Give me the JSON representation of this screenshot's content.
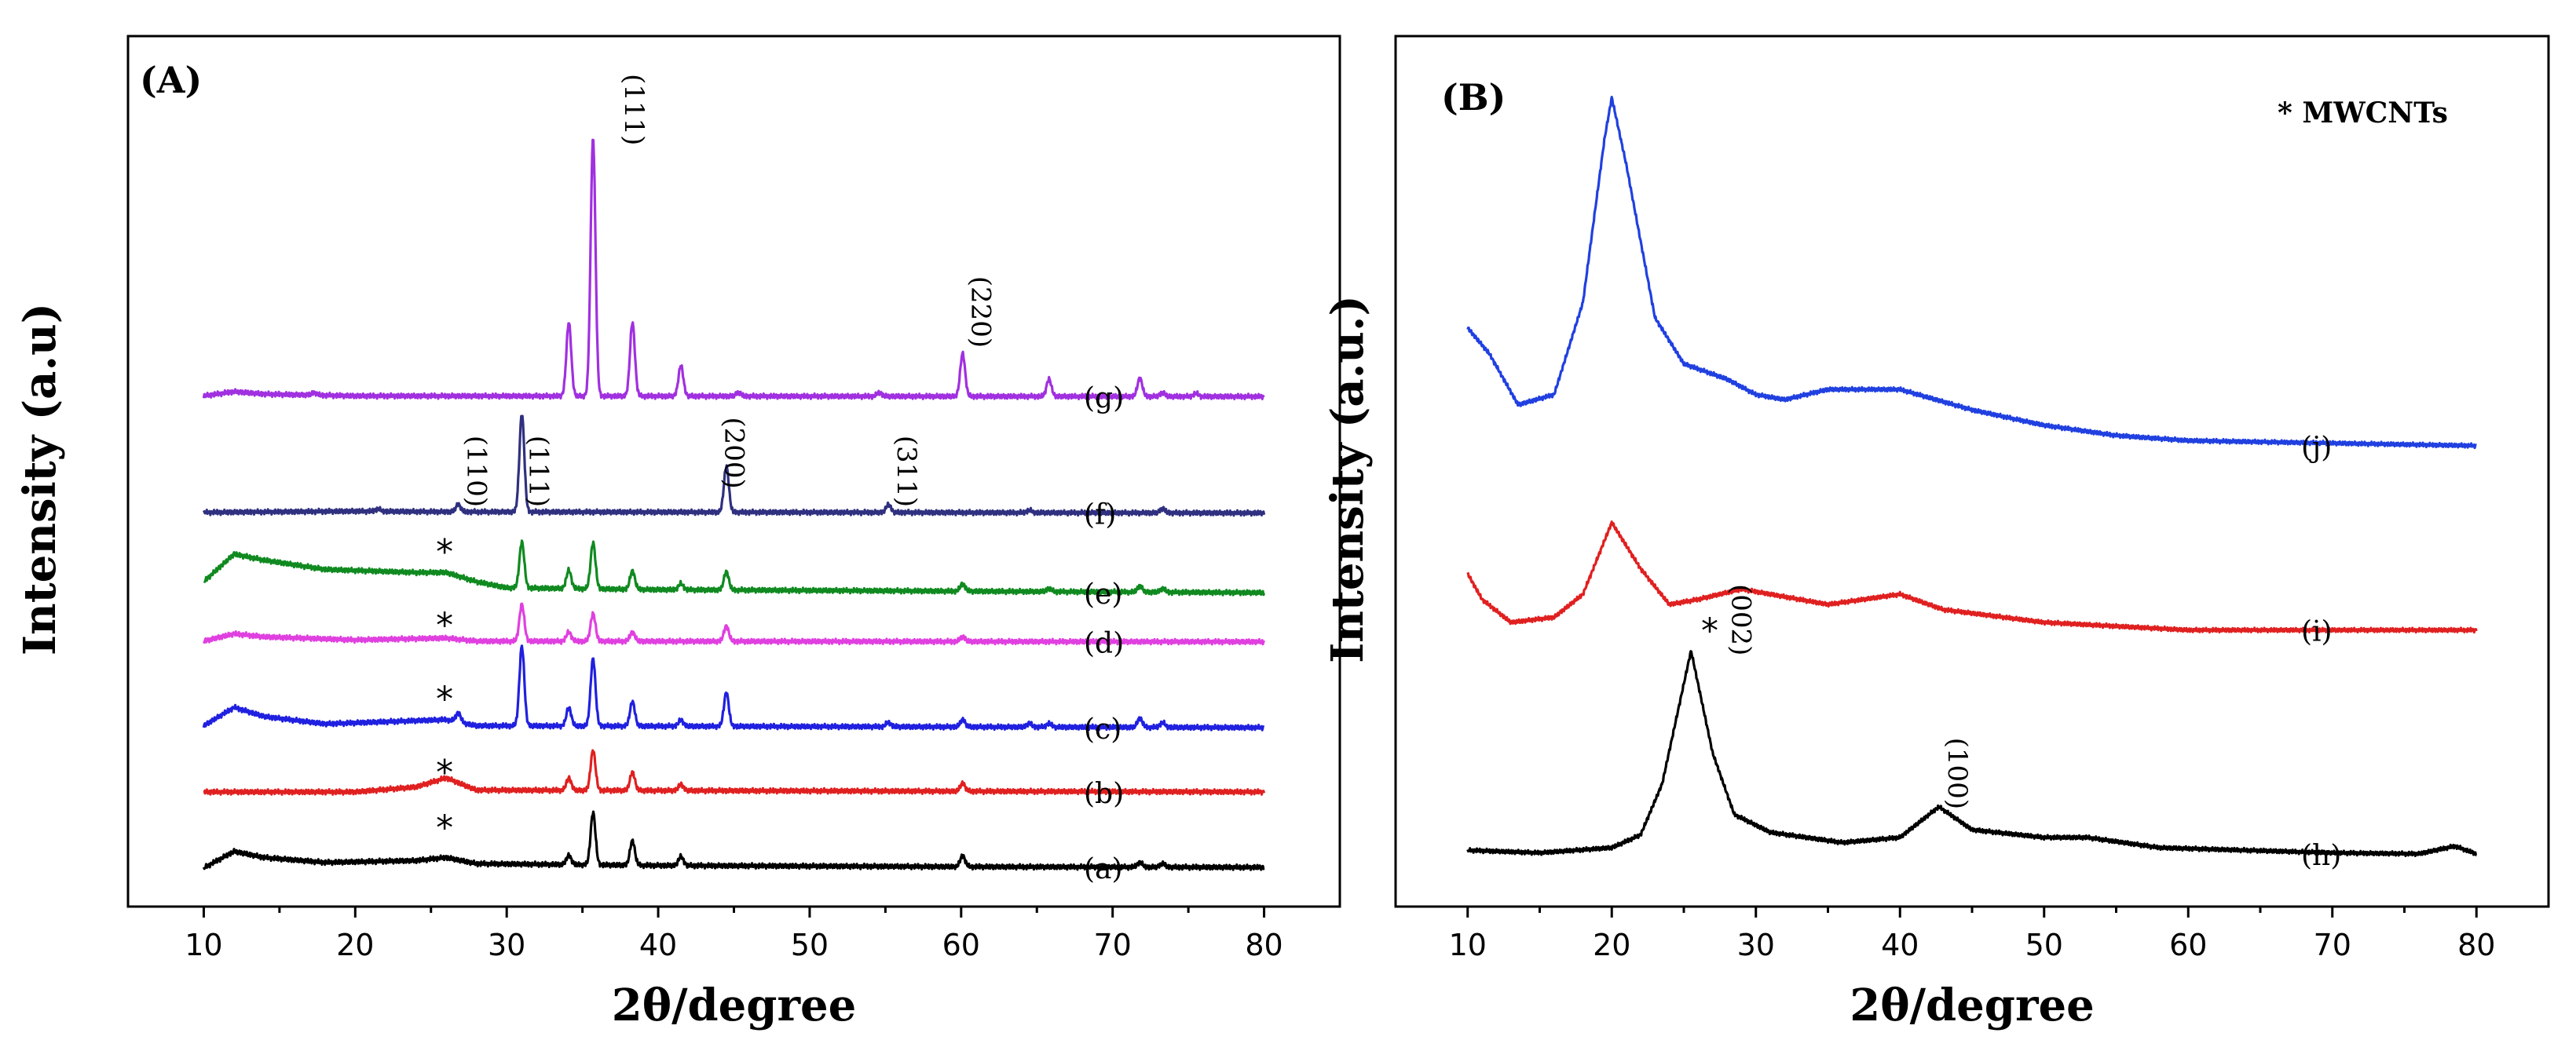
{
  "chart_data": [
    {
      "panel": "(A)",
      "type": "line",
      "xlabel": "2θ/degree",
      "ylabel": "Intensity (a.u)",
      "xlim": [
        5,
        85
      ],
      "xticks": [
        10,
        20,
        30,
        40,
        50,
        60,
        70,
        80
      ],
      "grid": false,
      "series": [
        {
          "name": "(a)",
          "color": "#000000",
          "offset": 0,
          "background": [
            [
              10,
              0.3
            ],
            [
              12,
              3.0
            ],
            [
              14,
              2.0
            ],
            [
              18,
              1.2
            ],
            [
              24,
              1.5
            ],
            [
              26,
              2.0
            ],
            [
              28,
              1.0
            ],
            [
              40,
              0.7
            ],
            [
              60,
              0.5
            ],
            [
              80,
              0.4
            ]
          ],
          "peaks": [
            [
              34.1,
              1.5
            ],
            [
              35.7,
              8.5
            ],
            [
              38.3,
              4.0
            ],
            [
              41.5,
              1.5
            ],
            [
              60.1,
              1.8
            ],
            [
              71.8,
              0.8
            ],
            [
              73.3,
              0.6
            ]
          ],
          "label_pos": 0.2
        },
        {
          "name": "(b)",
          "color": "#e02020",
          "offset": 12.5,
          "background": [
            [
              10,
              0.2
            ],
            [
              20,
              0.2
            ],
            [
              24,
              1.0
            ],
            [
              26,
              2.5
            ],
            [
              28,
              0.5
            ],
            [
              80,
              0.2
            ]
          ],
          "peaks": [
            [
              34.1,
              2.0
            ],
            [
              35.7,
              6.5
            ],
            [
              38.3,
              3.0
            ],
            [
              41.5,
              1.0
            ],
            [
              60.1,
              1.3
            ]
          ],
          "label_pos": 0.2
        },
        {
          "name": "(c)",
          "color": "#2020e0",
          "offset": 23,
          "background": [
            [
              10,
              0.5
            ],
            [
              12,
              3.5
            ],
            [
              14,
              2.0
            ],
            [
              18,
              0.8
            ],
            [
              26,
              1.5
            ],
            [
              28,
              0.5
            ],
            [
              80,
              0.2
            ]
          ],
          "peaks": [
            [
              26.8,
              1.5
            ],
            [
              31.0,
              13
            ],
            [
              34.1,
              3.0
            ],
            [
              35.7,
              11
            ],
            [
              38.3,
              4.0
            ],
            [
              41.5,
              1.0
            ],
            [
              44.5,
              5.5
            ],
            [
              55.2,
              0.7
            ],
            [
              60.1,
              1.2
            ],
            [
              64.5,
              0.6
            ],
            [
              65.8,
              0.6
            ],
            [
              71.8,
              1.5
            ],
            [
              73.3,
              0.8
            ]
          ],
          "label_pos": 0.2
        },
        {
          "name": "(d)",
          "color": "#e040e0",
          "offset": 37,
          "background": [
            [
              10,
              0.3
            ],
            [
              12,
              1.5
            ],
            [
              14,
              1.0
            ],
            [
              20,
              0.5
            ],
            [
              26,
              0.8
            ],
            [
              28,
              0.3
            ],
            [
              80,
              0.2
            ]
          ],
          "peaks": [
            [
              31.0,
              6
            ],
            [
              34.1,
              1.5
            ],
            [
              35.7,
              4.5
            ],
            [
              38.3,
              1.5
            ],
            [
              44.5,
              2.5
            ],
            [
              60.1,
              0.8
            ]
          ],
          "label_pos": 0.2
        },
        {
          "name": "(e)",
          "color": "#108a20",
          "offset": 45,
          "background": [
            [
              10,
              2.0
            ],
            [
              12,
              6.5
            ],
            [
              14,
              5.5
            ],
            [
              18,
              4.0
            ],
            [
              24,
              3.5
            ],
            [
              26,
              3.5
            ],
            [
              28,
              2.0
            ],
            [
              30,
              1.0
            ],
            [
              40,
              0.7
            ],
            [
              80,
              0.2
            ]
          ],
          "peaks": [
            [
              31.0,
              7.5
            ],
            [
              34.1,
              3.0
            ],
            [
              35.7,
              7.5
            ],
            [
              38.3,
              3.0
            ],
            [
              41.5,
              1.0
            ],
            [
              44.5,
              3.0
            ],
            [
              60.1,
              1.2
            ],
            [
              65.8,
              0.5
            ],
            [
              71.8,
              1.0
            ],
            [
              73.3,
              0.6
            ]
          ],
          "label_pos": 0.2
        },
        {
          "name": "(f)",
          "color": "#303080",
          "offset": 58,
          "background": [
            [
              10,
              0.3
            ],
            [
              20,
              0.5
            ],
            [
              26,
              0.4
            ],
            [
              80,
              0.2
            ]
          ],
          "peaks": [
            [
              21.5,
              0.4
            ],
            [
              26.8,
              1.2
            ],
            [
              31.0,
              16
            ],
            [
              44.5,
              7.5
            ],
            [
              55.2,
              1.3
            ],
            [
              64.5,
              0.4
            ],
            [
              73.3,
              0.7
            ]
          ],
          "label_pos": 0.2
        },
        {
          "name": "(g)",
          "color": "#a030e0",
          "offset": 77,
          "background": [
            [
              10,
              0.3
            ],
            [
              12,
              1.0
            ],
            [
              14,
              0.6
            ],
            [
              20,
              0.3
            ],
            [
              80,
              0.2
            ]
          ],
          "peaks": [
            [
              17.3,
              0.4
            ],
            [
              34.1,
              12
            ],
            [
              35.7,
              42
            ],
            [
              38.3,
              12
            ],
            [
              41.5,
              5
            ],
            [
              45.3,
              0.6
            ],
            [
              54.6,
              0.6
            ],
            [
              60.1,
              7
            ],
            [
              65.8,
              2.8
            ],
            [
              71.8,
              3.0
            ],
            [
              73.3,
              0.6
            ],
            [
              75.5,
              0.5
            ]
          ],
          "label_pos": 0.2
        }
      ],
      "annotations": [
        {
          "text": "(111)",
          "x": 37.2,
          "y": 124,
          "rotate": true
        },
        {
          "text": "(220)",
          "x": 60.1,
          "y": 91,
          "rotate": true
        },
        {
          "text": "(110)",
          "x": 26.8,
          "y": 65,
          "rotate": true
        },
        {
          "text": "(111)",
          "x": 30.9,
          "y": 65,
          "rotate": true
        },
        {
          "text": "(200)",
          "x": 43.8,
          "y": 68,
          "rotate": true
        },
        {
          "text": "(311)",
          "x": 55.2,
          "y": 65,
          "rotate": true
        }
      ],
      "stars": [
        {
          "x": 25.9,
          "y": 7
        },
        {
          "x": 25.9,
          "y": 16
        },
        {
          "x": 25.9,
          "y": 28
        },
        {
          "x": 25.9,
          "y": 40
        },
        {
          "x": 25.9,
          "y": 52
        }
      ],
      "ylim": [
        -6,
        136
      ]
    },
    {
      "panel": "(B)",
      "type": "line",
      "xlabel": "2θ/degree",
      "ylabel": "Intensity (a.u.)",
      "xlim": [
        5,
        85
      ],
      "xticks": [
        10,
        20,
        30,
        40,
        50,
        60,
        70,
        80
      ],
      "grid": false,
      "note": "* MWCNTs",
      "series": [
        {
          "name": "(h)",
          "color": "#000000",
          "offset": 0,
          "background": [
            [
              10,
              1.0
            ],
            [
              15,
              0.5
            ],
            [
              20,
              1.5
            ],
            [
              22,
              4
            ],
            [
              23.5,
              14
            ],
            [
              25.5,
              40
            ],
            [
              27,
              20
            ],
            [
              28.5,
              8
            ],
            [
              31,
              4.5
            ],
            [
              36,
              2.5
            ],
            [
              40,
              3.5
            ],
            [
              42.7,
              9.5
            ],
            [
              45,
              5
            ],
            [
              50,
              3.5
            ],
            [
              53,
              3.5
            ],
            [
              58,
              1.5
            ],
            [
              70,
              0.5
            ],
            [
              76,
              0.3
            ],
            [
              78.5,
              1.8
            ],
            [
              80,
              0.3
            ]
          ],
          "peaks": [],
          "label_pos": 0.3
        },
        {
          "name": "(i)",
          "color": "#e02020",
          "offset": 44,
          "background": [
            [
              10,
              11
            ],
            [
              11,
              6
            ],
            [
              13,
              1.5
            ],
            [
              16,
              2.5
            ],
            [
              18,
              7
            ],
            [
              20,
              21
            ],
            [
              22,
              12
            ],
            [
              24,
              5
            ],
            [
              26,
              6
            ],
            [
              29,
              8
            ],
            [
              35,
              5
            ],
            [
              40,
              7
            ],
            [
              43,
              4
            ],
            [
              50,
              1.5
            ],
            [
              60,
              0
            ],
            [
              80,
              0
            ]
          ],
          "peaks": [],
          "label_pos": 0.3
        },
        {
          "name": "(j)",
          "color": "#2040e0",
          "offset": 80,
          "background": [
            [
              10,
              23
            ],
            [
              11.5,
              18
            ],
            [
              13.5,
              8
            ],
            [
              16,
              10
            ],
            [
              18,
              28
            ],
            [
              19.5,
              60
            ],
            [
              20,
              68
            ],
            [
              21,
              55
            ],
            [
              23,
              25
            ],
            [
              25,
              16
            ],
            [
              28,
              13
            ],
            [
              30,
              10
            ],
            [
              32,
              9
            ],
            [
              35,
              11
            ],
            [
              40,
              11
            ],
            [
              45,
              7
            ],
            [
              50,
              4
            ],
            [
              55,
              2
            ],
            [
              60,
              1
            ],
            [
              70,
              0.5
            ],
            [
              80,
              0
            ]
          ],
          "peaks": [],
          "label_pos": 0.3
        }
      ],
      "annotations": [
        {
          "text": "(002)",
          "x": 27.7,
          "y": 46,
          "rotate": true
        },
        {
          "text": "(100)",
          "x": 42.7,
          "y": 16,
          "rotate": true
        }
      ],
      "stars": [
        {
          "x": 26.8,
          "y": 44
        }
      ],
      "ylim": [
        -10,
        160
      ]
    }
  ]
}
